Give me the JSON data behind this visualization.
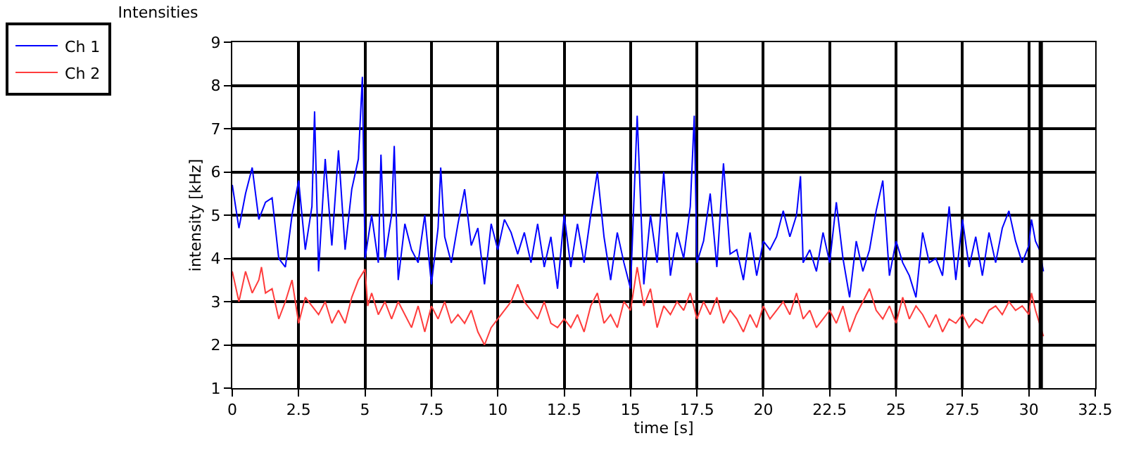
{
  "chart_data": {
    "type": "line",
    "title": "Intensities",
    "xlabel": "time [s]",
    "ylabel": "intensity [kHz]",
    "xlim": [
      0,
      32.5
    ],
    "xticks": [
      0,
      2.5,
      5,
      7.5,
      10,
      12.5,
      15,
      17.5,
      20,
      22.5,
      25,
      27.5,
      30,
      32.5
    ],
    "ylim": [
      1,
      9
    ],
    "yticks": [
      1,
      2,
      3,
      4,
      5,
      6,
      7,
      8,
      9
    ],
    "grid": true,
    "legend": "top left",
    "ref_lines": [
      {
        "axis": "x",
        "value": 30.45,
        "color": "#000000"
      }
    ],
    "series": [
      {
        "name": "Ch 1",
        "color": "#0000ff",
        "x": [
          0,
          0.25,
          0.5,
          0.75,
          1.0,
          1.25,
          1.5,
          1.75,
          2.0,
          2.25,
          2.5,
          2.75,
          3.0,
          3.1,
          3.25,
          3.5,
          3.75,
          4.0,
          4.25,
          4.5,
          4.75,
          4.9,
          5.0,
          5.25,
          5.5,
          5.6,
          5.75,
          6.0,
          6.1,
          6.25,
          6.5,
          6.75,
          7.0,
          7.25,
          7.5,
          7.75,
          7.85,
          8.0,
          8.25,
          8.5,
          8.75,
          9.0,
          9.25,
          9.5,
          9.75,
          10.0,
          10.25,
          10.5,
          10.75,
          11.0,
          11.25,
          11.5,
          11.75,
          12.0,
          12.25,
          12.5,
          12.75,
          13.0,
          13.25,
          13.5,
          13.75,
          14.0,
          14.25,
          14.5,
          14.75,
          15.0,
          15.25,
          15.5,
          15.75,
          16.0,
          16.25,
          16.5,
          16.75,
          17.0,
          17.25,
          17.4,
          17.5,
          17.75,
          18.0,
          18.25,
          18.5,
          18.75,
          19.0,
          19.25,
          19.5,
          19.75,
          20.0,
          20.25,
          20.5,
          20.75,
          21.0,
          21.25,
          21.4,
          21.5,
          21.75,
          22.0,
          22.25,
          22.5,
          22.75,
          23.0,
          23.25,
          23.5,
          23.75,
          24.0,
          24.25,
          24.5,
          24.75,
          25.0,
          25.25,
          25.5,
          25.75,
          26.0,
          26.25,
          26.5,
          26.75,
          27.0,
          27.25,
          27.5,
          27.75,
          28.0,
          28.25,
          28.5,
          28.75,
          29.0,
          29.25,
          29.5,
          29.75,
          30.0,
          30.1,
          30.25,
          30.4,
          30.55
        ],
        "values": [
          5.7,
          4.7,
          5.5,
          6.1,
          4.9,
          5.3,
          5.4,
          4.0,
          3.8,
          5.0,
          5.8,
          4.2,
          5.2,
          7.4,
          3.7,
          6.3,
          4.3,
          6.5,
          4.2,
          5.6,
          6.3,
          8.2,
          4.0,
          5.0,
          3.9,
          6.4,
          4.0,
          5.0,
          6.6,
          3.5,
          4.8,
          4.2,
          3.9,
          5.0,
          3.4,
          4.7,
          6.1,
          4.5,
          3.9,
          4.8,
          5.6,
          4.3,
          4.7,
          3.4,
          4.8,
          4.2,
          4.9,
          4.6,
          4.1,
          4.6,
          3.9,
          4.8,
          3.8,
          4.5,
          3.3,
          5.0,
          3.8,
          4.8,
          3.9,
          5.0,
          6.0,
          4.5,
          3.5,
          4.6,
          3.9,
          3.3,
          7.3,
          3.4,
          5.0,
          3.9,
          6.0,
          3.6,
          4.6,
          4.0,
          5.2,
          7.3,
          3.9,
          4.4,
          5.5,
          3.8,
          6.2,
          4.1,
          4.2,
          3.5,
          4.6,
          3.6,
          4.4,
          4.2,
          4.5,
          5.1,
          4.5,
          5.0,
          5.9,
          3.9,
          4.2,
          3.7,
          4.6,
          3.9,
          5.3,
          4.0,
          3.1,
          4.4,
          3.7,
          4.2,
          5.1,
          5.8,
          3.6,
          4.4,
          3.9,
          3.6,
          3.1,
          4.6,
          3.9,
          4.0,
          3.6,
          5.2,
          3.5,
          4.9,
          3.8,
          4.5,
          3.6,
          4.6,
          3.9,
          4.7,
          5.1,
          4.4,
          3.9,
          4.3,
          4.9,
          4.4,
          4.2,
          3.7
        ]
      },
      {
        "name": "Ch 2",
        "color": "#ff3c3c",
        "x": [
          0,
          0.25,
          0.5,
          0.75,
          1.0,
          1.1,
          1.25,
          1.5,
          1.75,
          2.0,
          2.25,
          2.5,
          2.75,
          3.0,
          3.25,
          3.5,
          3.75,
          4.0,
          4.25,
          4.5,
          4.75,
          5.0,
          5.1,
          5.25,
          5.5,
          5.75,
          6.0,
          6.25,
          6.5,
          6.75,
          7.0,
          7.25,
          7.5,
          7.75,
          8.0,
          8.25,
          8.5,
          8.75,
          9.0,
          9.25,
          9.5,
          9.75,
          10.0,
          10.25,
          10.5,
          10.75,
          11.0,
          11.25,
          11.5,
          11.75,
          12.0,
          12.25,
          12.5,
          12.75,
          13.0,
          13.25,
          13.5,
          13.75,
          14.0,
          14.25,
          14.5,
          14.75,
          15.0,
          15.25,
          15.5,
          15.75,
          16.0,
          16.25,
          16.5,
          16.75,
          17.0,
          17.25,
          17.5,
          17.75,
          18.0,
          18.25,
          18.5,
          18.75,
          19.0,
          19.25,
          19.5,
          19.75,
          20.0,
          20.25,
          20.5,
          20.75,
          21.0,
          21.25,
          21.5,
          21.75,
          22.0,
          22.25,
          22.5,
          22.75,
          23.0,
          23.25,
          23.5,
          23.75,
          24.0,
          24.25,
          24.5,
          24.75,
          25.0,
          25.25,
          25.5,
          25.75,
          26.0,
          26.25,
          26.5,
          26.75,
          27.0,
          27.25,
          27.5,
          27.75,
          28.0,
          28.25,
          28.5,
          28.75,
          29.0,
          29.25,
          29.5,
          29.75,
          30.0,
          30.1,
          30.25,
          30.4,
          30.55
        ],
        "values": [
          3.7,
          3.0,
          3.7,
          3.2,
          3.5,
          3.8,
          3.2,
          3.3,
          2.6,
          3.0,
          3.5,
          2.5,
          3.1,
          2.9,
          2.7,
          3.0,
          2.5,
          2.8,
          2.5,
          3.1,
          3.5,
          3.75,
          2.9,
          3.2,
          2.7,
          3.0,
          2.6,
          3.0,
          2.7,
          2.4,
          2.9,
          2.3,
          2.9,
          2.6,
          3.0,
          2.5,
          2.7,
          2.5,
          2.8,
          2.3,
          2.0,
          2.4,
          2.6,
          2.8,
          3.0,
          3.4,
          3.0,
          2.8,
          2.6,
          3.0,
          2.5,
          2.4,
          2.6,
          2.4,
          2.7,
          2.3,
          2.9,
          3.2,
          2.5,
          2.7,
          2.4,
          3.0,
          2.8,
          3.8,
          2.9,
          3.3,
          2.4,
          2.9,
          2.7,
          3.0,
          2.8,
          3.2,
          2.6,
          3.0,
          2.7,
          3.1,
          2.5,
          2.8,
          2.6,
          2.3,
          2.7,
          2.4,
          2.9,
          2.6,
          2.8,
          3.0,
          2.7,
          3.2,
          2.6,
          2.8,
          2.4,
          2.6,
          2.8,
          2.5,
          2.9,
          2.3,
          2.7,
          3.0,
          3.3,
          2.8,
          2.6,
          2.9,
          2.5,
          3.1,
          2.6,
          2.9,
          2.7,
          2.4,
          2.7,
          2.3,
          2.6,
          2.5,
          2.7,
          2.4,
          2.6,
          2.5,
          2.8,
          2.9,
          2.7,
          3.0,
          2.8,
          2.9,
          2.7,
          3.2,
          2.8,
          2.5,
          2.2
        ]
      }
    ]
  }
}
